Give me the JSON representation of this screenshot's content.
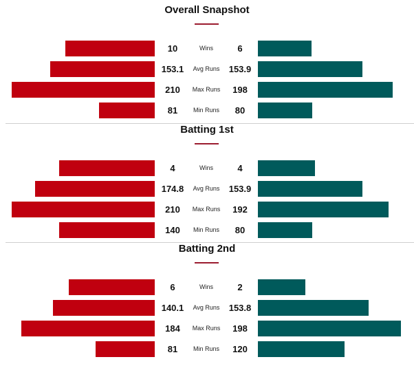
{
  "colors": {
    "left_bar": "#c0000f",
    "right_bar": "#005a5b",
    "accent_underline": "#9b1b2e"
  },
  "sections": [
    {
      "title": "Overall Snapshot",
      "rows": [
        {
          "metric": "Wins",
          "left": "10",
          "right": "6"
        },
        {
          "metric": "Avg Runs",
          "left": "153.1",
          "right": "153.9"
        },
        {
          "metric": "Max Runs",
          "left": "210",
          "right": "198"
        },
        {
          "metric": "Min Runs",
          "left": "81",
          "right": "80"
        }
      ]
    },
    {
      "title": "Batting 1st",
      "rows": [
        {
          "metric": "Wins",
          "left": "4",
          "right": "4"
        },
        {
          "metric": "Avg Runs",
          "left": "174.8",
          "right": "153.9"
        },
        {
          "metric": "Max Runs",
          "left": "210",
          "right": "192"
        },
        {
          "metric": "Min Runs",
          "left": "140",
          "right": "80"
        }
      ]
    },
    {
      "title": "Batting 2nd",
      "rows": [
        {
          "metric": "Wins",
          "left": "6",
          "right": "2"
        },
        {
          "metric": "Avg Runs",
          "left": "140.1",
          "right": "153.8"
        },
        {
          "metric": "Max Runs",
          "left": "184",
          "right": "198"
        },
        {
          "metric": "Min Runs",
          "left": "81",
          "right": "120"
        }
      ]
    }
  ]
}
